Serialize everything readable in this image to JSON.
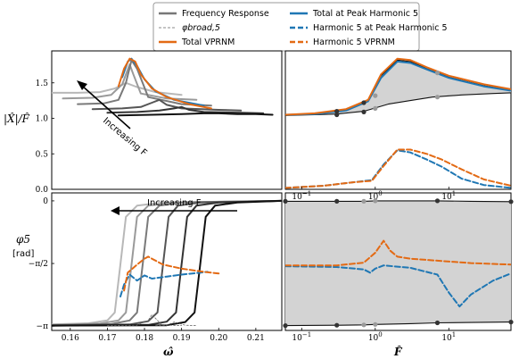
{
  "colors": {
    "blue": "#1f77b4",
    "orange": "#e36a14",
    "grey_fill": "#d3d3d3",
    "gray_levels": [
      "#b8b8b8",
      "#9a9a9a",
      "#7a7a7a",
      "#555555",
      "#333333",
      "#111111"
    ]
  },
  "legend": {
    "items": [
      {
        "label": "Frequency Response",
        "style": "gray-solid"
      },
      {
        "label": "Total at Peak Harmonic 5",
        "style": "blue-solid"
      },
      {
        "label": "φbroad,5",
        "style": "gray-dashed-thin"
      },
      {
        "label": "Harmonic 5 at Peak Harmonic 5",
        "style": "blue-dashed"
      },
      {
        "label": "Total VPRNM",
        "style": "orange-solid"
      },
      {
        "label": "Harmonic 5 VPRNM",
        "style": "orange-dashed"
      }
    ]
  },
  "annotations": {
    "top_left": "Increasing F",
    "bottom_left": "Increasing F"
  },
  "axes_labels": {
    "top_ylabel": "|X̂|/F̂",
    "bottom_ylabel_1": "φ5",
    "bottom_ylabel_2": "[rad]",
    "bottom_left_xlabel": "ω̂",
    "bottom_right_xlabel": "F̂"
  },
  "chart_data": [
    {
      "type": "line",
      "panel": "top-left",
      "xlim": [
        0.155,
        0.217
      ],
      "ylim": [
        0.0,
        1.95
      ],
      "yticks": [
        "0.0",
        "0.5",
        "1.0",
        "1.5"
      ],
      "series": [
        {
          "group": "frequency-response",
          "x": [
            0.155,
            0.162,
            0.168,
            0.172,
            0.175,
            0.178,
            0.183,
            0.19
          ],
          "y": [
            1.36,
            1.36,
            1.37,
            1.42,
            1.5,
            1.44,
            1.37,
            1.33
          ]
        },
        {
          "group": "frequency-response",
          "x": [
            0.158,
            0.166,
            0.171,
            0.174,
            0.176,
            0.177,
            0.179,
            0.186,
            0.194
          ],
          "y": [
            1.28,
            1.29,
            1.33,
            1.48,
            1.76,
            1.62,
            1.35,
            1.28,
            1.26
          ]
        },
        {
          "group": "frequency-response",
          "x": [
            0.162,
            0.169,
            0.173,
            0.175,
            0.1765,
            0.178,
            0.181,
            0.19,
            0.198
          ],
          "y": [
            1.2,
            1.21,
            1.26,
            1.5,
            1.82,
            1.7,
            1.3,
            1.2,
            1.18
          ]
        },
        {
          "group": "frequency-response",
          "x": [
            0.166,
            0.174,
            0.179,
            0.182,
            0.184,
            0.186,
            0.19,
            0.2,
            0.206
          ],
          "y": [
            1.13,
            1.14,
            1.16,
            1.22,
            1.26,
            1.19,
            1.14,
            1.12,
            1.11
          ]
        },
        {
          "group": "frequency-response",
          "x": [
            0.17,
            0.178,
            0.184,
            0.188,
            0.19,
            0.192,
            0.196,
            0.206,
            0.212
          ],
          "y": [
            1.08,
            1.09,
            1.11,
            1.14,
            1.16,
            1.12,
            1.09,
            1.08,
            1.07
          ]
        },
        {
          "group": "frequency-response",
          "x": [
            0.173,
            0.182,
            0.19,
            0.196,
            0.2,
            0.205,
            0.21,
            0.2145
          ],
          "y": [
            1.04,
            1.05,
            1.06,
            1.07,
            1.07,
            1.06,
            1.06,
            1.05
          ]
        },
        {
          "group": "blue-total",
          "x": [
            0.174,
            0.1755,
            0.1765,
            0.178,
            0.18,
            0.183,
            0.188,
            0.196
          ],
          "y": [
            1.58,
            1.8,
            1.84,
            1.74,
            1.55,
            1.38,
            1.26,
            1.18
          ]
        },
        {
          "group": "orange-total",
          "x": [
            0.173,
            0.1745,
            0.176,
            0.1775,
            0.179,
            0.182,
            0.186,
            0.192,
            0.198
          ],
          "y": [
            1.45,
            1.7,
            1.84,
            1.8,
            1.62,
            1.42,
            1.3,
            1.2,
            1.14
          ]
        }
      ]
    },
    {
      "type": "line",
      "panel": "top-right",
      "xscale": "log",
      "xlim": [
        0.06,
        70
      ],
      "ylim": [
        0.0,
        1.95
      ],
      "xticks": [
        "10^-1",
        "10^0",
        "10^1"
      ],
      "series": [
        {
          "name": "upper-envelope",
          "x": [
            0.06,
            0.15,
            0.4,
            0.8,
            1.2,
            2,
            3,
            5,
            10,
            30,
            70
          ],
          "y": [
            1.05,
            1.07,
            1.12,
            1.25,
            1.6,
            1.82,
            1.8,
            1.7,
            1.58,
            1.46,
            1.4
          ]
        },
        {
          "name": "lower-envelope",
          "x": [
            0.06,
            0.15,
            0.3,
            0.7,
            1.5,
            3,
            6,
            15,
            40,
            70
          ],
          "y": [
            1.04,
            1.05,
            1.06,
            1.1,
            1.2,
            1.25,
            1.3,
            1.33,
            1.35,
            1.36
          ]
        },
        {
          "name": "blue-total",
          "x": [
            0.06,
            0.15,
            0.4,
            0.8,
            1.2,
            2,
            3,
            5,
            10,
            30,
            70
          ],
          "y": [
            1.05,
            1.06,
            1.11,
            1.24,
            1.57,
            1.8,
            1.78,
            1.69,
            1.57,
            1.45,
            1.39
          ]
        },
        {
          "name": "orange-total",
          "x": [
            0.06,
            0.15,
            0.4,
            0.8,
            1.2,
            2,
            3,
            5,
            10,
            30,
            70
          ],
          "y": [
            1.05,
            1.07,
            1.13,
            1.26,
            1.62,
            1.84,
            1.82,
            1.72,
            1.6,
            1.48,
            1.41
          ]
        },
        {
          "name": "blue-harmonic5",
          "x": [
            0.06,
            0.2,
            0.5,
            0.9,
            1.3,
            2,
            3,
            5,
            8,
            15,
            30,
            70
          ],
          "y": [
            0.02,
            0.05,
            0.1,
            0.13,
            0.35,
            0.55,
            0.52,
            0.42,
            0.32,
            0.15,
            0.06,
            0.02
          ]
        },
        {
          "name": "orange-harmonic5",
          "x": [
            0.06,
            0.2,
            0.5,
            0.9,
            1.3,
            2,
            3,
            5,
            8,
            15,
            30,
            70
          ],
          "y": [
            0.02,
            0.05,
            0.1,
            0.12,
            0.33,
            0.56,
            0.56,
            0.5,
            0.42,
            0.28,
            0.14,
            0.05
          ]
        }
      ],
      "markers_upper": {
        "x": [
          0.3,
          0.7,
          1.0,
          7.0
        ],
        "y": [
          1.1,
          1.22,
          1.32,
          1.64
        ]
      },
      "markers_lower": {
        "x": [
          0.3,
          0.7,
          1.0,
          7.0
        ],
        "y": [
          1.05,
          1.09,
          1.14,
          1.3
        ]
      }
    },
    {
      "type": "line",
      "panel": "bottom-left",
      "xlim": [
        0.155,
        0.217
      ],
      "ylim": [
        -3.25,
        0.2
      ],
      "xticks": [
        "0.16",
        "0.17",
        "0.18",
        "0.19",
        "0.20",
        "0.21"
      ],
      "yticks": [
        "0",
        "−π/2",
        "−π"
      ],
      "series": [
        {
          "group": "phase",
          "x": [
            0.155,
            0.165,
            0.17,
            0.172,
            0.1735,
            0.175,
            0.178,
            0.185,
            0.217
          ],
          "y": [
            -3.1,
            -3.07,
            -3.0,
            -2.8,
            -1.6,
            -0.4,
            -0.12,
            -0.04,
            0.0
          ]
        },
        {
          "group": "phase",
          "x": [
            0.155,
            0.168,
            0.173,
            0.175,
            0.1765,
            0.178,
            0.181,
            0.188,
            0.217
          ],
          "y": [
            -3.11,
            -3.08,
            -3.0,
            -2.8,
            -1.6,
            -0.4,
            -0.12,
            -0.04,
            0.0
          ]
        },
        {
          "group": "phase",
          "x": [
            0.155,
            0.171,
            0.176,
            0.178,
            0.1795,
            0.181,
            0.184,
            0.19,
            0.217
          ],
          "y": [
            -3.12,
            -3.09,
            -3.0,
            -2.8,
            -1.6,
            -0.4,
            -0.12,
            -0.04,
            0.0
          ]
        },
        {
          "group": "phase",
          "x": [
            0.155,
            0.176,
            0.181,
            0.1835,
            0.185,
            0.1865,
            0.189,
            0.195,
            0.217
          ],
          "y": [
            -3.12,
            -3.1,
            -3.02,
            -2.8,
            -1.6,
            -0.4,
            -0.12,
            -0.04,
            0.0
          ]
        },
        {
          "group": "phase",
          "x": [
            0.155,
            0.181,
            0.186,
            0.1885,
            0.19,
            0.1915,
            0.194,
            0.2,
            0.217
          ],
          "y": [
            -3.13,
            -3.11,
            -3.03,
            -2.8,
            -1.6,
            -0.4,
            -0.12,
            -0.04,
            0.0
          ]
        },
        {
          "group": "phase",
          "x": [
            0.155,
            0.186,
            0.191,
            0.1935,
            0.195,
            0.1965,
            0.199,
            0.205,
            0.217
          ],
          "y": [
            -3.13,
            -3.12,
            -3.04,
            -2.8,
            -1.6,
            -0.4,
            -0.12,
            -0.04,
            0.0
          ]
        },
        {
          "group": "phi-broad",
          "x": [
            0.17,
            0.178,
            0.181,
            0.182,
            0.183,
            0.1845,
            0.187,
            0.19
          ],
          "y": [
            -3.13,
            -3.12,
            -3.0,
            -2.85,
            -2.95,
            -3.1,
            -3.12,
            -3.13
          ]
        },
        {
          "group": "phi-broad",
          "x": [
            0.183,
            0.186,
            0.188,
            0.1895,
            0.191,
            0.194
          ],
          "y": [
            -3.13,
            -3.12,
            -3.04,
            -3.08,
            -3.12,
            -3.13
          ]
        },
        {
          "group": "blue-harmonic5",
          "x": [
            0.1735,
            0.1745,
            0.176,
            0.178,
            0.18,
            0.182,
            0.186,
            0.19,
            0.197
          ],
          "y": [
            -2.4,
            -2.1,
            -1.85,
            -2.0,
            -1.87,
            -1.95,
            -1.9,
            -1.85,
            -1.78
          ]
        },
        {
          "group": "orange-harmonic5",
          "x": [
            0.1745,
            0.1755,
            0.178,
            0.18,
            0.181,
            0.182,
            0.185,
            0.19,
            0.196,
            0.2
          ],
          "y": [
            -2.25,
            -1.8,
            -1.6,
            -1.45,
            -1.4,
            -1.45,
            -1.6,
            -1.7,
            -1.78,
            -1.82
          ]
        }
      ]
    },
    {
      "type": "line",
      "panel": "bottom-right",
      "xscale": "log",
      "xlim": [
        0.06,
        70
      ],
      "ylim": [
        -3.25,
        0.2
      ],
      "xticks": [
        "10^-1",
        "10^0",
        "10^1"
      ],
      "series": [
        {
          "name": "upper-envelope",
          "x": [
            0.06,
            0.3,
            0.7,
            1.0,
            3,
            7,
            20,
            70
          ],
          "y": [
            -0.01,
            -0.01,
            -0.01,
            0.0,
            0.0,
            0.0,
            -0.01,
            -0.02
          ]
        },
        {
          "name": "lower-envelope",
          "x": [
            0.06,
            0.3,
            0.7,
            1.0,
            3,
            7,
            20,
            70
          ],
          "y": [
            -3.13,
            -3.12,
            -3.11,
            -3.1,
            -3.08,
            -3.06,
            -3.05,
            -3.04
          ]
        },
        {
          "name": "blue-harmonic5",
          "x": [
            0.06,
            0.3,
            0.7,
            0.85,
            1.0,
            1.3,
            3,
            7,
            10,
            14,
            20,
            40,
            70
          ],
          "y": [
            -1.64,
            -1.66,
            -1.72,
            -1.8,
            -1.7,
            -1.62,
            -1.68,
            -1.85,
            -2.3,
            -2.65,
            -2.35,
            -2.0,
            -1.82
          ]
        },
        {
          "name": "orange-harmonic5",
          "x": [
            0.06,
            0.3,
            0.7,
            1.0,
            1.3,
            1.6,
            2,
            3,
            7,
            20,
            40,
            70
          ],
          "y": [
            -1.62,
            -1.62,
            -1.55,
            -1.3,
            -1.0,
            -1.25,
            -1.4,
            -1.45,
            -1.5,
            -1.56,
            -1.58,
            -1.6
          ]
        }
      ],
      "markers_upper": {
        "x": [
          0.06,
          0.3,
          0.7,
          1.0,
          7.0,
          70
        ],
        "y": [
          -0.01,
          -0.01,
          -0.01,
          0.0,
          0.0,
          -0.02
        ]
      },
      "markers_lower": {
        "x": [
          0.06,
          0.3,
          0.7,
          1.0,
          7.0,
          70
        ],
        "y": [
          -3.13,
          -3.12,
          -3.11,
          -3.1,
          -3.06,
          -3.04
        ]
      }
    }
  ]
}
